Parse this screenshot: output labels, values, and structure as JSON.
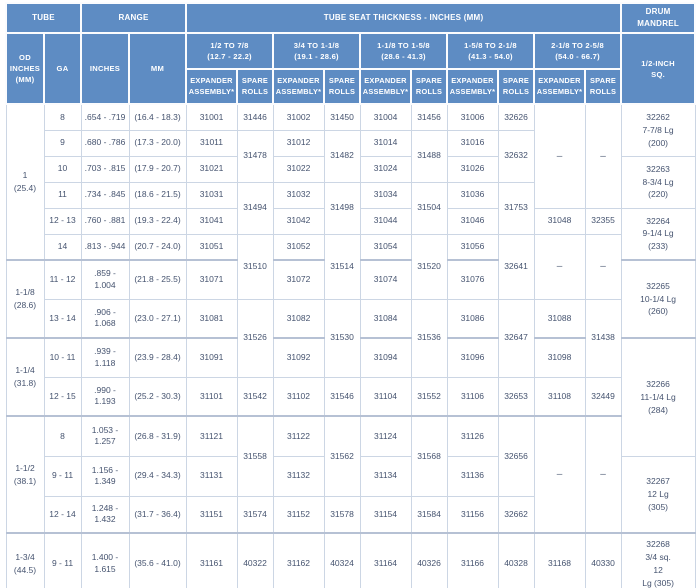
{
  "colors": {
    "header_bg": "#5e8cc3",
    "header_text": "#ffffff",
    "cell_text": "#45536f",
    "grid_line": "#ccd6e4",
    "group_line": "#b6c1d4"
  },
  "header": {
    "tube_group": "TUBE",
    "range_group": "RANGE",
    "seat_group": "TUBE SEAT THICKNESS - INCHES (MM)",
    "drum_group": "DRUM\nMANDREL",
    "od_col": "OD\nINCHES\n(MM)",
    "ga_col": "GA",
    "inches_col": "INCHES",
    "mm_col": "MM",
    "drum_sub": "1/2-INCH\nSQ.",
    "expander_col": "EXPANDER\nASSEMBLY*",
    "spare_col": "SPARE\nROLLS",
    "seat_ranges": [
      "1/2 TO 7/8\n(12.7 - 22.2)",
      "3/4 TO 1-1/8\n(19.1 - 28.6)",
      "1-1/8 TO 1-5/8\n(28.6 - 41.3)",
      "1-5/8 TO 2-1/8\n(41.3 - 54.0)",
      "2-1/8 TO 2-5/8\n(54.0 - 66.7)"
    ]
  },
  "table": {
    "rows": [
      {
        "cells": [
          {
            "v": "1\n(25.4)",
            "rs": 6,
            "k": "od"
          },
          {
            "v": "8",
            "k": "ga"
          },
          {
            "v": ".654 - .719",
            "k": "in"
          },
          {
            "v": "(16.4 - 18.3)",
            "k": "mm"
          },
          {
            "v": "31001",
            "k": "exp"
          },
          {
            "v": "31446",
            "k": "spare"
          },
          {
            "v": "31002",
            "k": "exp"
          },
          {
            "v": "31450",
            "k": "spare"
          },
          {
            "v": "31004",
            "k": "exp"
          },
          {
            "v": "31456",
            "k": "spare"
          },
          {
            "v": "31006",
            "k": "exp"
          },
          {
            "v": "32626",
            "k": "spare"
          },
          {
            "v": "–",
            "rs": 4,
            "k": "dash"
          },
          {
            "v": "–",
            "rs": 4,
            "k": "dash"
          },
          {
            "v": "32262\n7-7/8 Lg\n(200)",
            "rs": 2,
            "k": "drum"
          }
        ]
      },
      {
        "cells": [
          {
            "v": "9",
            "k": "ga"
          },
          {
            "v": ".680 - .786",
            "k": "in"
          },
          {
            "v": "(17.3 - 20.0)",
            "k": "mm"
          },
          {
            "v": "31011",
            "k": "exp"
          },
          {
            "v": "31478",
            "rs": 2,
            "k": "spare"
          },
          {
            "v": "31012",
            "k": "exp"
          },
          {
            "v": "31482",
            "rs": 2,
            "k": "spare"
          },
          {
            "v": "31014",
            "k": "exp"
          },
          {
            "v": "31488",
            "rs": 2,
            "k": "spare"
          },
          {
            "v": "31016",
            "k": "exp"
          },
          {
            "v": "32632",
            "rs": 2,
            "k": "spare"
          }
        ]
      },
      {
        "cells": [
          {
            "v": "10",
            "k": "ga"
          },
          {
            "v": ".703 - .815",
            "k": "in"
          },
          {
            "v": "(17.9 - 20.7)",
            "k": "mm"
          },
          {
            "v": "31021",
            "k": "exp"
          },
          {
            "v": "31022",
            "k": "exp"
          },
          {
            "v": "31024",
            "k": "exp"
          },
          {
            "v": "31026",
            "k": "exp"
          },
          {
            "v": "32263\n8-3/4 Lg\n(220)",
            "rs": 2,
            "k": "drum"
          }
        ]
      },
      {
        "cells": [
          {
            "v": "11",
            "k": "ga"
          },
          {
            "v": ".734 - .845",
            "k": "in"
          },
          {
            "v": "(18.6 - 21.5)",
            "k": "mm"
          },
          {
            "v": "31031",
            "k": "exp"
          },
          {
            "v": "31494",
            "rs": 2,
            "k": "spare"
          },
          {
            "v": "31032",
            "k": "exp"
          },
          {
            "v": "31498",
            "rs": 2,
            "k": "spare"
          },
          {
            "v": "31034",
            "k": "exp"
          },
          {
            "v": "31504",
            "rs": 2,
            "k": "spare"
          },
          {
            "v": "31036",
            "k": "exp"
          },
          {
            "v": "31753",
            "rs": 2,
            "k": "spare"
          }
        ]
      },
      {
        "cells": [
          {
            "v": "12 - 13",
            "k": "ga"
          },
          {
            "v": ".760 - .881",
            "k": "in"
          },
          {
            "v": "(19.3 - 22.4)",
            "k": "mm"
          },
          {
            "v": "31041",
            "k": "exp"
          },
          {
            "v": "31042",
            "k": "exp"
          },
          {
            "v": "31044",
            "k": "exp"
          },
          {
            "v": "31046",
            "k": "exp"
          },
          {
            "v": "31048",
            "k": "exp"
          },
          {
            "v": "32355",
            "k": "spare"
          },
          {
            "v": "32264\n9-1/4 Lg\n(233)",
            "rs": 2,
            "k": "drum"
          }
        ]
      },
      {
        "cells": [
          {
            "v": "14",
            "k": "ga"
          },
          {
            "v": ".813 - .944",
            "k": "in"
          },
          {
            "v": "(20.7 - 24.0)",
            "k": "mm"
          },
          {
            "v": "31051",
            "k": "exp"
          },
          {
            "v": "31510",
            "rs": 2,
            "k": "spare"
          },
          {
            "v": "31052",
            "k": "exp"
          },
          {
            "v": "31514",
            "rs": 2,
            "k": "spare"
          },
          {
            "v": "31054",
            "k": "exp"
          },
          {
            "v": "31520",
            "rs": 2,
            "k": "spare"
          },
          {
            "v": "31056",
            "k": "exp"
          },
          {
            "v": "32641",
            "rs": 2,
            "k": "spare"
          },
          {
            "v": "–",
            "rs": 2,
            "k": "dash"
          },
          {
            "v": "–",
            "rs": 2,
            "k": "dash"
          }
        ]
      },
      {
        "cells": [
          {
            "v": "1-1/8\n(28.6)",
            "rs": 2,
            "k": "od"
          },
          {
            "v": "11 - 12",
            "k": "ga"
          },
          {
            "v": ".859 -\n1.004",
            "k": "in"
          },
          {
            "v": "(21.8 - 25.5)",
            "k": "mm"
          },
          {
            "v": "31071",
            "k": "exp"
          },
          {
            "v": "31072",
            "k": "exp"
          },
          {
            "v": "31074",
            "k": "exp"
          },
          {
            "v": "31076",
            "k": "exp"
          },
          {
            "v": "32265\n10-1/4 Lg\n(260)",
            "rs": 2,
            "k": "drum"
          }
        ]
      },
      {
        "cells": [
          {
            "v": "13 - 14",
            "k": "ga"
          },
          {
            "v": ".906 -\n1.068",
            "k": "in"
          },
          {
            "v": "(23.0 - 27.1)",
            "k": "mm"
          },
          {
            "v": "31081",
            "k": "exp"
          },
          {
            "v": "31526",
            "rs": 2,
            "k": "spare"
          },
          {
            "v": "31082",
            "k": "exp"
          },
          {
            "v": "31530",
            "rs": 2,
            "k": "spare"
          },
          {
            "v": "31084",
            "k": "exp"
          },
          {
            "v": "31536",
            "rs": 2,
            "k": "spare"
          },
          {
            "v": "31086",
            "k": "exp"
          },
          {
            "v": "32647",
            "rs": 2,
            "k": "spare"
          },
          {
            "v": "31088",
            "k": "exp"
          },
          {
            "v": "31438",
            "rs": 2,
            "k": "spare"
          }
        ]
      },
      {
        "cells": [
          {
            "v": "1-1/4\n(31.8)",
            "rs": 2,
            "k": "od"
          },
          {
            "v": "10 - 11",
            "k": "ga"
          },
          {
            "v": ".939 -\n1.118",
            "k": "in"
          },
          {
            "v": "(23.9 - 28.4)",
            "k": "mm"
          },
          {
            "v": "31091",
            "k": "exp"
          },
          {
            "v": "31092",
            "k": "exp"
          },
          {
            "v": "31094",
            "k": "exp"
          },
          {
            "v": "31096",
            "k": "exp"
          },
          {
            "v": "31098",
            "k": "exp"
          },
          {
            "v": "32266\n11-1/4 Lg\n(284)",
            "rs": 3,
            "k": "drum"
          }
        ]
      },
      {
        "cells": [
          {
            "v": "12 - 15",
            "k": "ga"
          },
          {
            "v": ".990 -\n1.193",
            "k": "in"
          },
          {
            "v": "(25.2 - 30.3)",
            "k": "mm"
          },
          {
            "v": "31101",
            "k": "exp"
          },
          {
            "v": "31542",
            "k": "spare"
          },
          {
            "v": "31102",
            "k": "exp"
          },
          {
            "v": "31546",
            "k": "spare"
          },
          {
            "v": "31104",
            "k": "exp"
          },
          {
            "v": "31552",
            "k": "spare"
          },
          {
            "v": "31106",
            "k": "exp"
          },
          {
            "v": "32653",
            "k": "spare"
          },
          {
            "v": "31108",
            "k": "exp"
          },
          {
            "v": "32449",
            "k": "spare"
          }
        ]
      },
      {
        "cells": [
          {
            "v": "1-1/2\n(38.1)",
            "rs": 3,
            "k": "od"
          },
          {
            "v": "8",
            "k": "ga"
          },
          {
            "v": "1.053 -\n1.257",
            "k": "in"
          },
          {
            "v": "(26.8 - 31.9)",
            "k": "mm"
          },
          {
            "v": "31121",
            "k": "exp"
          },
          {
            "v": "31558",
            "rs": 2,
            "k": "spare"
          },
          {
            "v": "31122",
            "k": "exp"
          },
          {
            "v": "31562",
            "rs": 2,
            "k": "spare"
          },
          {
            "v": "31124",
            "k": "exp"
          },
          {
            "v": "31568",
            "rs": 2,
            "k": "spare"
          },
          {
            "v": "31126",
            "k": "exp"
          },
          {
            "v": "32656",
            "rs": 2,
            "k": "spare"
          },
          {
            "v": "–",
            "rs": 3,
            "k": "dash"
          },
          {
            "v": "–",
            "rs": 3,
            "k": "dash"
          }
        ]
      },
      {
        "cells": [
          {
            "v": "9 - 11",
            "k": "ga"
          },
          {
            "v": "1.156 -\n1.349",
            "k": "in"
          },
          {
            "v": "(29.4 - 34.3)",
            "k": "mm"
          },
          {
            "v": "31131",
            "k": "exp"
          },
          {
            "v": "31132",
            "k": "exp"
          },
          {
            "v": "31134",
            "k": "exp"
          },
          {
            "v": "31136",
            "k": "exp"
          },
          {
            "v": "32267\n12 Lg\n(305)",
            "rs": 2,
            "k": "drum"
          }
        ]
      },
      {
        "cells": [
          {
            "v": "12 - 14",
            "k": "ga"
          },
          {
            "v": "1.248 -\n1.432",
            "k": "in"
          },
          {
            "v": "(31.7 - 36.4)",
            "k": "mm"
          },
          {
            "v": "31151",
            "k": "exp"
          },
          {
            "v": "31574",
            "k": "spare"
          },
          {
            "v": "31152",
            "k": "exp"
          },
          {
            "v": "31578",
            "k": "spare"
          },
          {
            "v": "31154",
            "k": "exp"
          },
          {
            "v": "31584",
            "k": "spare"
          },
          {
            "v": "31156",
            "k": "exp"
          },
          {
            "v": "32662",
            "k": "spare"
          }
        ]
      },
      {
        "cells": [
          {
            "v": "1-3/4\n(44.5)",
            "k": "od"
          },
          {
            "v": "9 - 11",
            "k": "ga"
          },
          {
            "v": "1.400 -\n1.615",
            "k": "in"
          },
          {
            "v": "(35.6 - 41.0)",
            "k": "mm"
          },
          {
            "v": "31161",
            "k": "exp"
          },
          {
            "v": "40322",
            "k": "spare"
          },
          {
            "v": "31162",
            "k": "exp"
          },
          {
            "v": "40324",
            "k": "spare"
          },
          {
            "v": "31164",
            "k": "exp"
          },
          {
            "v": "40326",
            "k": "spare"
          },
          {
            "v": "31166",
            "k": "exp"
          },
          {
            "v": "40328",
            "k": "spare"
          },
          {
            "v": "31168",
            "k": "exp"
          },
          {
            "v": "40330",
            "k": "spare"
          },
          {
            "v": "32268\n3/4 sq.\n12\nLg (305)",
            "k": "drum"
          }
        ]
      }
    ]
  }
}
